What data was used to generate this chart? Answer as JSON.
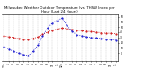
{
  "title": "Milwaukee Weather Outdoor Temperature (vs) THSW Index per Hour (Last 24 Hours)",
  "title_fontsize": 2.8,
  "red_line_color": "#cc0000",
  "blue_line_color": "#0000cc",
  "background_color": "#ffffff",
  "grid_color": "#888888",
  "ylim": [
    -15,
    75
  ],
  "ytick_vals": [
    0,
    10,
    20,
    30,
    40,
    50,
    60,
    70
  ],
  "ytick_labels": [
    "0",
    "10",
    "20",
    "30",
    "40",
    "50",
    "60",
    "70"
  ],
  "red_data": [
    33,
    31,
    30,
    28,
    27,
    26,
    28,
    31,
    36,
    40,
    44,
    46,
    48,
    47,
    45,
    44,
    43,
    42,
    41,
    40,
    39,
    38,
    38,
    37
  ],
  "blue_data": [
    12,
    8,
    3,
    0,
    -3,
    -5,
    3,
    15,
    33,
    48,
    58,
    63,
    67,
    53,
    42,
    35,
    33,
    31,
    30,
    29,
    28,
    27,
    26,
    25
  ],
  "n_points": 24,
  "x_labels": [
    "12a",
    "1",
    "2",
    "3",
    "4",
    "5",
    "6",
    "7",
    "8",
    "9",
    "10",
    "11",
    "12p",
    "1",
    "2",
    "3",
    "4",
    "5",
    "6",
    "7",
    "8",
    "9",
    "10",
    "11"
  ],
  "tick_fontsize": 2.2,
  "linewidth": 0.6,
  "markersize": 1.0
}
